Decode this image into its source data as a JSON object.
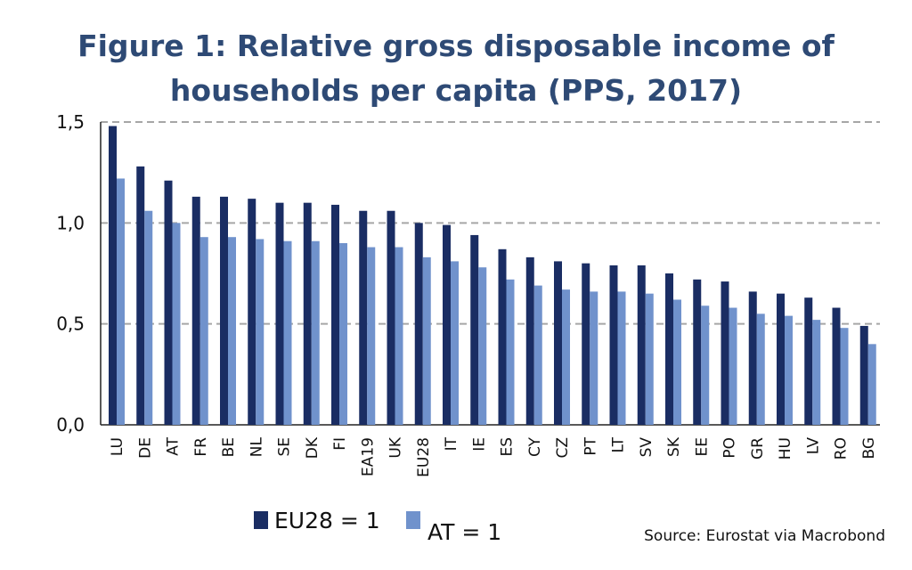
{
  "title_line1": "Figure 1: Relative gross disposable income of",
  "title_line2": "households per capita (PPS, 2017)",
  "source": "Source: Eurostat via Macrobond",
  "colors": {
    "eu28": "#1a2d63",
    "at": "#7092cc",
    "title": "#2e4a75",
    "grid": "#a6a6a6"
  },
  "chart_data": {
    "type": "bar",
    "title": "Figure 1: Relative gross disposable income of households per capita (PPS, 2017)",
    "categories": [
      "LU",
      "DE",
      "AT",
      "FR",
      "BE",
      "NL",
      "SE",
      "DK",
      "FI",
      "EA19",
      "UK",
      "EU28",
      "IT",
      "IE",
      "ES",
      "CY",
      "CZ",
      "PT",
      "LT",
      "SV",
      "SK",
      "EE",
      "PO",
      "GR",
      "HU",
      "LV",
      "RO",
      "BG"
    ],
    "series": [
      {
        "name": "EU28 = 1",
        "values": [
          1.48,
          1.28,
          1.21,
          1.13,
          1.13,
          1.12,
          1.1,
          1.1,
          1.09,
          1.06,
          1.06,
          1.0,
          0.99,
          0.94,
          0.87,
          0.83,
          0.81,
          0.8,
          0.79,
          0.79,
          0.75,
          0.72,
          0.71,
          0.66,
          0.65,
          0.63,
          0.58,
          0.49
        ]
      },
      {
        "name": "AT = 1",
        "values": [
          1.22,
          1.06,
          1.0,
          0.93,
          0.93,
          0.92,
          0.91,
          0.91,
          0.9,
          0.88,
          0.88,
          0.83,
          0.81,
          0.78,
          0.72,
          0.69,
          0.67,
          0.66,
          0.66,
          0.65,
          0.62,
          0.59,
          0.58,
          0.55,
          0.54,
          0.52,
          0.48,
          0.4
        ]
      }
    ],
    "yticks": [
      "0,0",
      "0,5",
      "1,0",
      "1,5"
    ],
    "ytick_values": [
      0,
      0.5,
      1.0,
      1.5
    ],
    "ylim": [
      0,
      1.5
    ],
    "grid": "horizontal dashed",
    "legend_position": "bottom-left"
  }
}
